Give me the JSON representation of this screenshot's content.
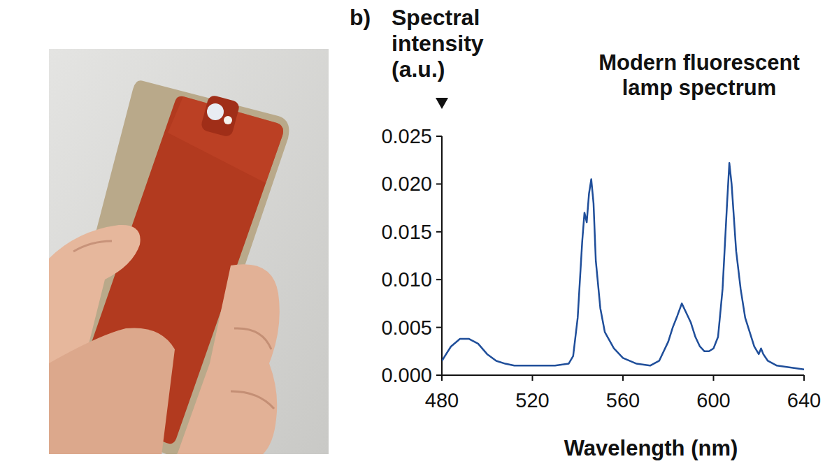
{
  "chart_data": {
    "type": "line",
    "title": "Modern fluorescent lamp spectrum",
    "panel_label": "b)",
    "ylabel": "Spectral intensity (a.u.)",
    "xlabel": "Wavelength (nm)",
    "color": "#1f4e9a",
    "x": [
      480,
      484,
      488,
      492,
      496,
      500,
      504,
      508,
      512,
      520,
      530,
      536,
      538,
      540,
      542,
      543,
      544,
      545,
      546,
      547,
      548,
      550,
      552,
      556,
      560,
      566,
      572,
      576,
      580,
      582,
      584,
      586,
      588,
      590,
      592,
      594,
      596,
      598,
      600,
      602,
      604,
      606,
      607,
      608,
      610,
      612,
      614,
      616,
      618,
      620,
      621,
      622,
      624,
      628,
      634,
      640
    ],
    "values": [
      0.0015,
      0.003,
      0.0038,
      0.0038,
      0.0033,
      0.0022,
      0.0015,
      0.0012,
      0.001,
      0.001,
      0.001,
      0.0012,
      0.002,
      0.006,
      0.014,
      0.017,
      0.016,
      0.019,
      0.0205,
      0.018,
      0.012,
      0.007,
      0.0045,
      0.0028,
      0.0018,
      0.0012,
      0.001,
      0.0015,
      0.0035,
      0.005,
      0.0062,
      0.0075,
      0.0065,
      0.0055,
      0.004,
      0.003,
      0.0025,
      0.0025,
      0.0028,
      0.004,
      0.009,
      0.018,
      0.0222,
      0.02,
      0.013,
      0.009,
      0.006,
      0.0045,
      0.003,
      0.0022,
      0.0028,
      0.0022,
      0.0015,
      0.001,
      0.0008,
      0.0006
    ],
    "xlim": [
      480,
      640
    ],
    "xticks": [
      480,
      520,
      560,
      600,
      640
    ],
    "ylim": [
      0,
      0.025
    ],
    "yticks": [
      {
        "value": 0,
        "label": "0.000"
      },
      {
        "value": 0.005,
        "label": "0.005"
      },
      {
        "value": 0.01,
        "label": "0.010"
      },
      {
        "value": 0.015,
        "label": "0.015"
      },
      {
        "value": 0.02,
        "label": "0.020"
      },
      {
        "value": 0.025,
        "label": "0.025"
      }
    ],
    "grid": false
  }
}
